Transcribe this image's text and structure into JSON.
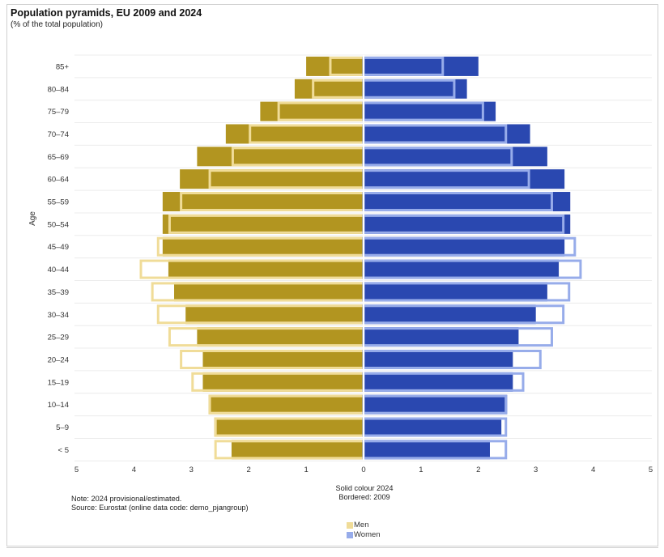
{
  "title": "Population pyramids, EU 2009 and 2024",
  "subtitle": "(% of the total population)",
  "note": "Note: 2024 provisional/estimated.",
  "source": "Source: Eurostat (online data code: demo_pjangroup)",
  "solid_note": "Solid colour 2024",
  "border_note": "Bordered: 2009",
  "legend": {
    "men": "Men",
    "women": "Women"
  },
  "colors": {
    "men_solid": "#b29520",
    "men_border": "#f0dc98",
    "women_solid": "#2a48b0",
    "women_border": "#97acea"
  },
  "chart_data": {
    "type": "bar",
    "orientation": "horizontal",
    "ylabel": "Age",
    "xlim": [
      -5,
      5
    ],
    "xticks": [
      5,
      4,
      3,
      2,
      1,
      0,
      1,
      2,
      3,
      4,
      5
    ],
    "categories": [
      "85+",
      "80–84",
      "75–79",
      "70–74",
      "65–69",
      "60–64",
      "55–59",
      "50–54",
      "45–49",
      "40–44",
      "35–39",
      "30–34",
      "25–29",
      "20–24",
      "15–19",
      "10–14",
      "5–9",
      "< 5"
    ],
    "series": [
      {
        "name": "Men 2024",
        "style": "solid",
        "values": [
          1.0,
          1.2,
          1.8,
          2.4,
          2.9,
          3.2,
          3.5,
          3.5,
          3.5,
          3.4,
          3.3,
          3.1,
          2.9,
          2.8,
          2.8,
          2.7,
          2.6,
          2.3
        ]
      },
      {
        "name": "Men 2009",
        "style": "bordered",
        "values": [
          0.6,
          0.9,
          1.5,
          2.0,
          2.3,
          2.7,
          3.2,
          3.4,
          3.6,
          3.9,
          3.7,
          3.6,
          3.4,
          3.2,
          3.0,
          2.7,
          2.6,
          2.6
        ]
      },
      {
        "name": "Women 2024",
        "style": "solid",
        "values": [
          2.0,
          1.8,
          2.3,
          2.9,
          3.2,
          3.5,
          3.6,
          3.6,
          3.5,
          3.4,
          3.2,
          3.0,
          2.7,
          2.6,
          2.6,
          2.5,
          2.4,
          2.2
        ]
      },
      {
        "name": "Women 2009",
        "style": "bordered",
        "values": [
          1.4,
          1.6,
          2.1,
          2.5,
          2.6,
          2.9,
          3.3,
          3.5,
          3.7,
          3.8,
          3.6,
          3.5,
          3.3,
          3.1,
          2.8,
          2.5,
          2.5,
          2.5
        ]
      }
    ]
  }
}
